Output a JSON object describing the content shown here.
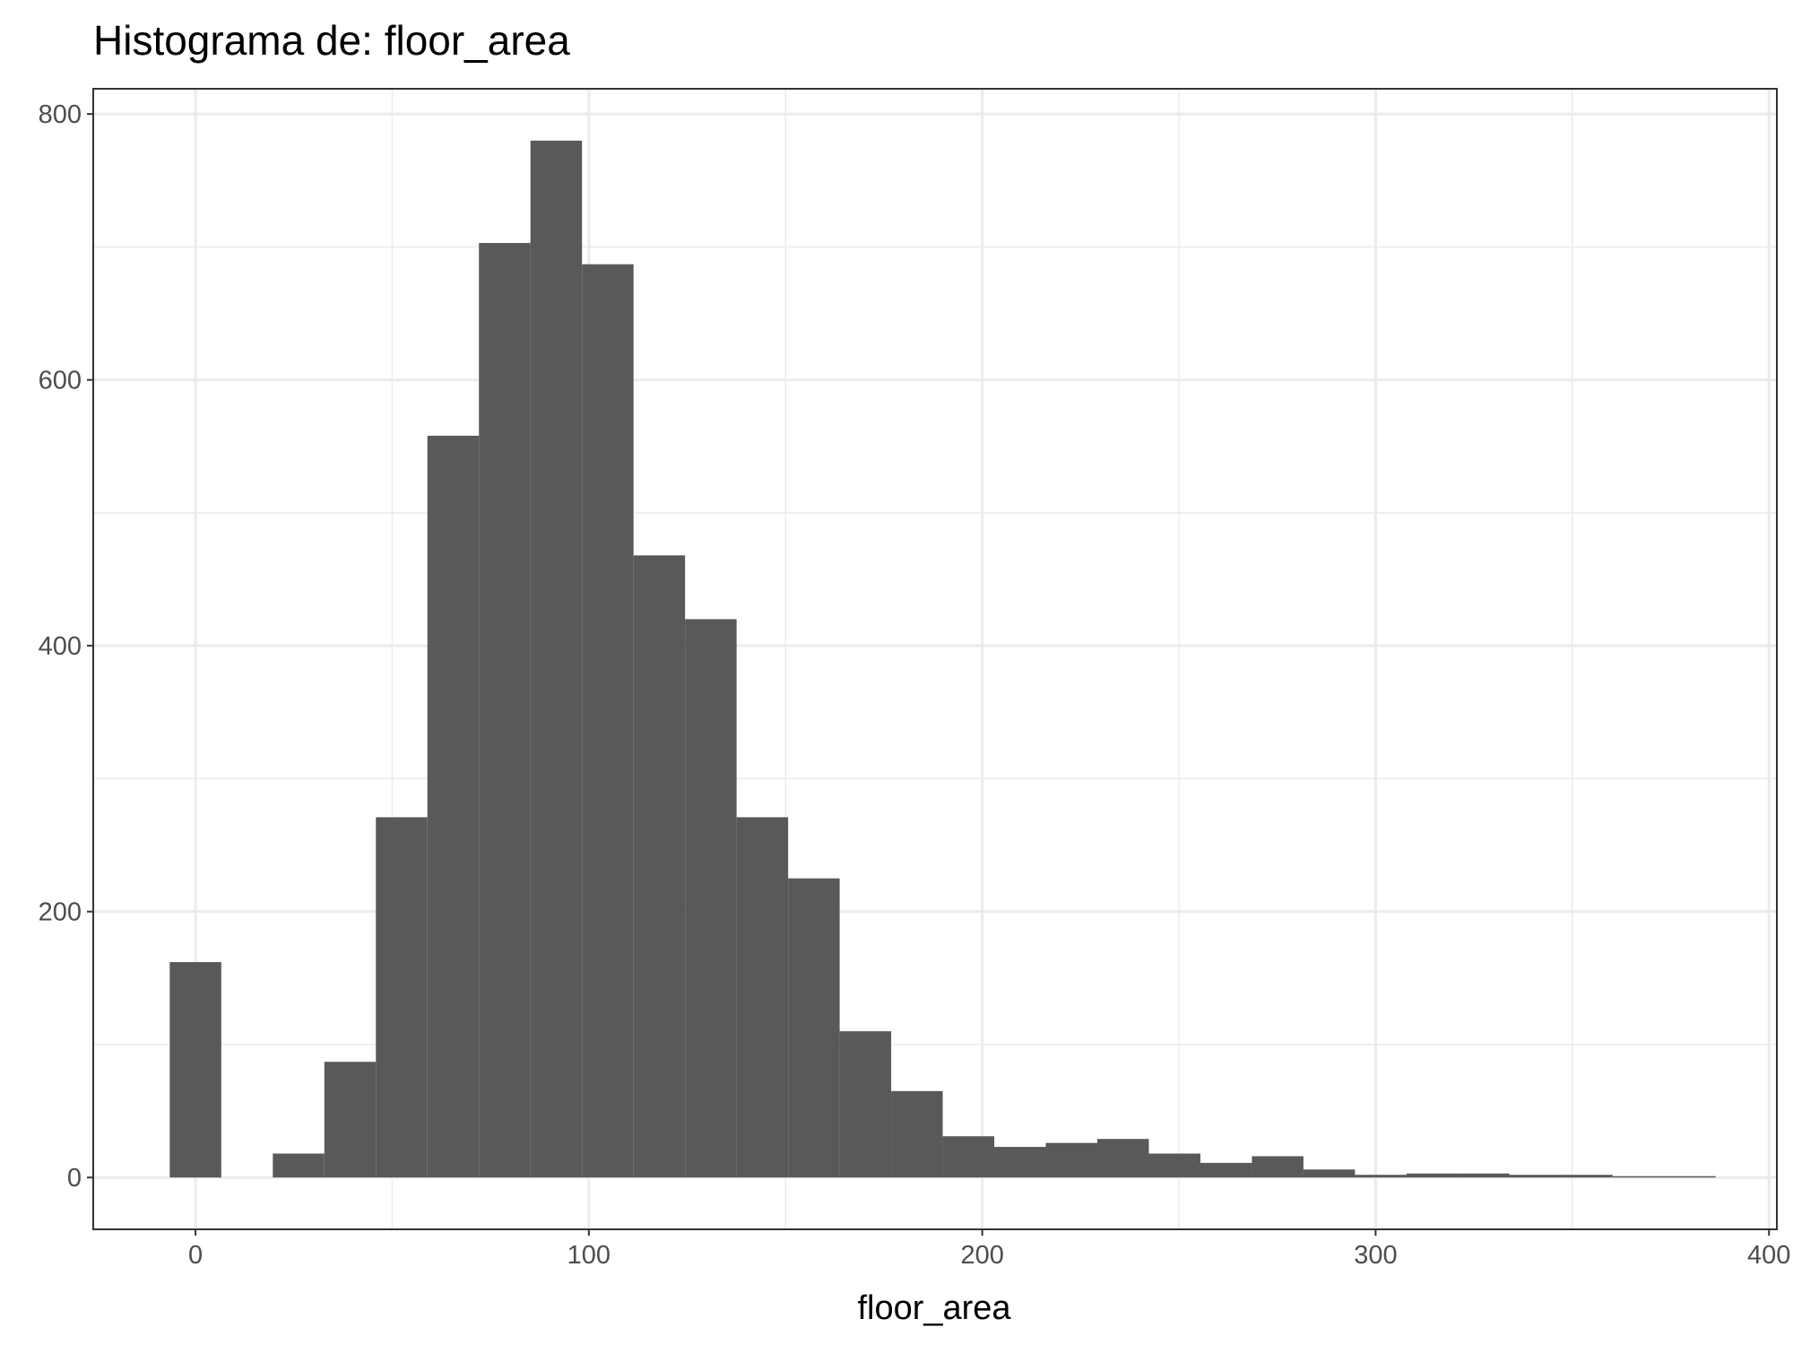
{
  "chart_data": {
    "type": "bar",
    "title": "Histograma de: floor_area",
    "xlabel": "floor_area",
    "ylabel": "",
    "bin_width": 13.1,
    "bins": [
      {
        "x0": -6.55,
        "x1": 6.55,
        "count": 162
      },
      {
        "x0": 6.55,
        "x1": 19.65,
        "count": 0
      },
      {
        "x0": 19.65,
        "x1": 32.75,
        "count": 18
      },
      {
        "x0": 32.75,
        "x1": 45.85,
        "count": 87
      },
      {
        "x0": 45.85,
        "x1": 58.95,
        "count": 271
      },
      {
        "x0": 58.95,
        "x1": 72.05,
        "count": 558
      },
      {
        "x0": 72.05,
        "x1": 85.15,
        "count": 703
      },
      {
        "x0": 85.15,
        "x1": 98.25,
        "count": 780
      },
      {
        "x0": 98.25,
        "x1": 111.35,
        "count": 687
      },
      {
        "x0": 111.35,
        "x1": 124.45,
        "count": 468
      },
      {
        "x0": 124.45,
        "x1": 137.55,
        "count": 420
      },
      {
        "x0": 137.55,
        "x1": 150.65,
        "count": 271
      },
      {
        "x0": 150.65,
        "x1": 163.75,
        "count": 225
      },
      {
        "x0": 163.75,
        "x1": 176.85,
        "count": 110
      },
      {
        "x0": 176.85,
        "x1": 189.95,
        "count": 65
      },
      {
        "x0": 189.95,
        "x1": 203.05,
        "count": 31
      },
      {
        "x0": 203.05,
        "x1": 216.15,
        "count": 23
      },
      {
        "x0": 216.15,
        "x1": 229.25,
        "count": 26
      },
      {
        "x0": 229.25,
        "x1": 242.35,
        "count": 29
      },
      {
        "x0": 242.35,
        "x1": 255.45,
        "count": 18
      },
      {
        "x0": 255.45,
        "x1": 268.55,
        "count": 11
      },
      {
        "x0": 268.55,
        "x1": 281.65,
        "count": 16
      },
      {
        "x0": 281.65,
        "x1": 294.75,
        "count": 6
      },
      {
        "x0": 294.75,
        "x1": 307.85,
        "count": 2
      },
      {
        "x0": 307.85,
        "x1": 320.95,
        "count": 3
      },
      {
        "x0": 320.95,
        "x1": 334.05,
        "count": 3
      },
      {
        "x0": 334.05,
        "x1": 347.15,
        "count": 2
      },
      {
        "x0": 347.15,
        "x1": 360.25,
        "count": 2
      },
      {
        "x0": 360.25,
        "x1": 373.35,
        "count": 1
      },
      {
        "x0": 373.35,
        "x1": 386.45,
        "count": 1
      }
    ],
    "xlim": [
      -26,
      402
    ],
    "ylim": [
      -39,
      819
    ],
    "x_ticks": [
      0,
      100,
      200,
      300,
      400
    ],
    "x_tick_labels": [
      "0",
      "100",
      "200",
      "300",
      "400"
    ],
    "y_ticks": [
      0,
      200,
      400,
      600,
      800
    ],
    "y_tick_labels": [
      "0",
      "200",
      "400",
      "600",
      "800"
    ],
    "grid": true,
    "colors": {
      "bar": "#595959",
      "grid": "#ebebeb",
      "panel_border": "#333333",
      "tick_label": "#4d4d4d"
    }
  }
}
